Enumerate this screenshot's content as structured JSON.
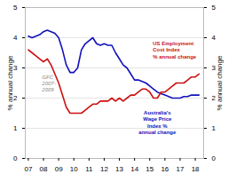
{
  "chart_data": {
    "type": "line",
    "ylabel": "% annual change",
    "y2label": "% annual change",
    "x": [
      2007.0,
      2007.25,
      2007.5,
      2007.75,
      2008.0,
      2008.25,
      2008.5,
      2008.75,
      2009.0,
      2009.25,
      2009.5,
      2009.75,
      2010.0,
      2010.25,
      2010.5,
      2010.75,
      2011.0,
      2011.25,
      2011.5,
      2011.75,
      2012.0,
      2012.25,
      2012.5,
      2012.75,
      2013.0,
      2013.25,
      2013.5,
      2013.75,
      2014.0,
      2014.25,
      2014.5,
      2014.75,
      2015.0,
      2015.25,
      2015.5,
      2015.75,
      2016.0,
      2016.25,
      2016.5,
      2016.75,
      2017.0,
      2017.25,
      2017.5,
      2017.75,
      2018.0,
      2018.25
    ],
    "series": [
      {
        "color": "#1111bb",
        "values": [
          4.05,
          4.0,
          4.05,
          4.1,
          4.2,
          4.25,
          4.2,
          4.15,
          4.0,
          3.6,
          3.1,
          2.85,
          2.85,
          3.0,
          3.6,
          3.8,
          3.9,
          4.0,
          3.8,
          3.75,
          3.8,
          3.75,
          3.75,
          3.5,
          3.3,
          3.1,
          3.0,
          2.8,
          2.6,
          2.6,
          2.55,
          2.5,
          2.4,
          2.3,
          2.2,
          2.15,
          2.1,
          2.05,
          2.0,
          2.0,
          2.0,
          2.05,
          2.05,
          2.1,
          2.1,
          2.1
        ]
      },
      {
        "color": "#cc1111",
        "values": [
          3.6,
          3.5,
          3.4,
          3.3,
          3.2,
          3.3,
          3.1,
          2.8,
          2.5,
          2.1,
          1.7,
          1.5,
          1.5,
          1.5,
          1.5,
          1.6,
          1.7,
          1.8,
          1.8,
          1.9,
          1.9,
          1.9,
          2.0,
          1.9,
          2.0,
          1.9,
          2.0,
          2.1,
          2.1,
          2.2,
          2.3,
          2.3,
          2.2,
          2.0,
          2.0,
          2.2,
          2.2,
          2.3,
          2.4,
          2.5,
          2.5,
          2.5,
          2.6,
          2.7,
          2.7,
          2.8
        ]
      }
    ],
    "xlim": [
      2006.8,
      2018.55
    ],
    "xticks": [
      {
        "value": 2007,
        "label": "07"
      },
      {
        "value": 2008,
        "label": "08"
      },
      {
        "value": 2009,
        "label": "09"
      },
      {
        "value": 2010,
        "label": "10"
      },
      {
        "value": 2011,
        "label": "11"
      },
      {
        "value": 2012,
        "label": "12"
      },
      {
        "value": 2013,
        "label": "13"
      },
      {
        "value": 2014,
        "label": "14"
      },
      {
        "value": 2015,
        "label": "15"
      },
      {
        "value": 2016,
        "label": "16"
      },
      {
        "value": 2017,
        "label": "17"
      },
      {
        "value": 2018,
        "label": "18"
      }
    ],
    "ylim": [
      0,
      5
    ],
    "yticks": [
      0,
      1,
      2,
      3,
      4,
      5
    ],
    "y2lim": [
      0,
      5
    ],
    "y2ticks": [
      0,
      1,
      2,
      3,
      4,
      5
    ],
    "grid": true,
    "annotations": [
      {
        "text": "GFC\n2007-\n2009",
        "x": 2007.9,
        "y": 2.5,
        "color": "#888888"
      },
      {
        "text": "Australia's\nWage Price\nIndex %\nannual change",
        "x": 2015.5,
        "y": 1.2,
        "color": "#1111bb"
      },
      {
        "text": "US Employment\nCost Index\n% annual change",
        "x": 2015.2,
        "y": 3.6,
        "color": "#cc1111"
      }
    ]
  }
}
